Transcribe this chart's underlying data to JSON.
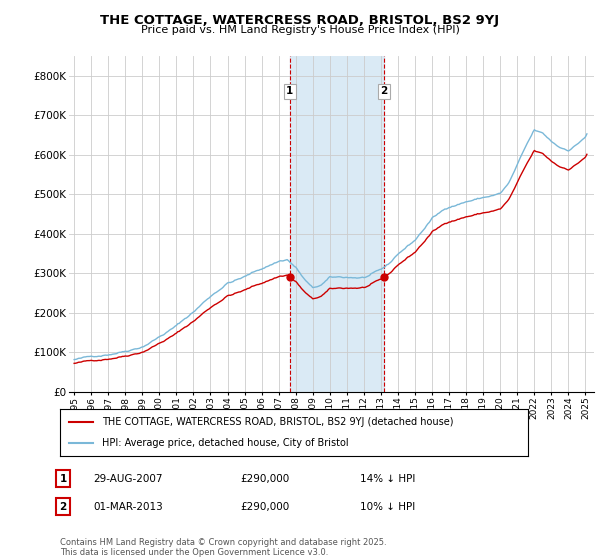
{
  "title_line1": "THE COTTAGE, WATERCRESS ROAD, BRISTOL, BS2 9YJ",
  "title_line2": "Price paid vs. HM Land Registry's House Price Index (HPI)",
  "ylim": [
    0,
    850000
  ],
  "yticks": [
    0,
    100000,
    200000,
    300000,
    400000,
    500000,
    600000,
    700000,
    800000
  ],
  "ytick_labels": [
    "£0",
    "£100K",
    "£200K",
    "£300K",
    "£400K",
    "£500K",
    "£600K",
    "£700K",
    "£800K"
  ],
  "sale1_date": "29-AUG-2007",
  "sale1_price": 290000,
  "sale1_hpi_diff": "14% ↓ HPI",
  "sale2_date": "01-MAR-2013",
  "sale2_price": 290000,
  "sale2_hpi_diff": "10% ↓ HPI",
  "marker1_x": 2007.66,
  "marker2_x": 2013.17,
  "legend_line1": "THE COTTAGE, WATERCRESS ROAD, BRISTOL, BS2 9YJ (detached house)",
  "legend_line2": "HPI: Average price, detached house, City of Bristol",
  "footer": "Contains HM Land Registry data © Crown copyright and database right 2025.\nThis data is licensed under the Open Government Licence v3.0.",
  "hpi_color": "#7ab8d8",
  "price_color": "#cc0000",
  "shade_color": "#daeaf5",
  "background_color": "#ffffff",
  "grid_color": "#cccccc"
}
